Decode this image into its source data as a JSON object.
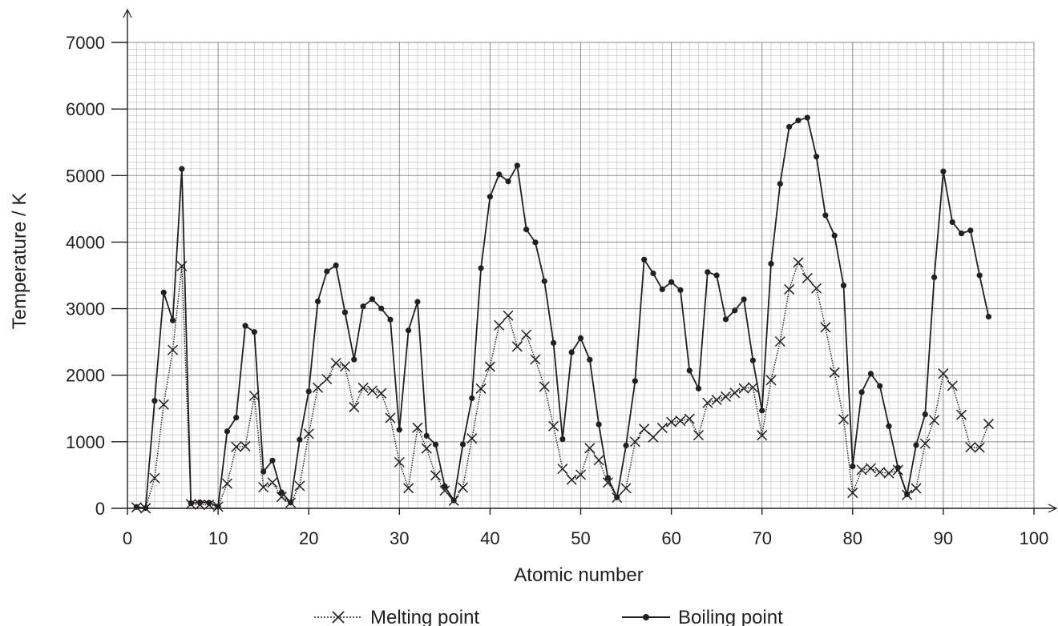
{
  "chart_data": {
    "type": "line",
    "title": "",
    "xlabel": "Atomic number",
    "ylabel": "Temperature / K",
    "xlim": [
      0,
      100
    ],
    "ylim": [
      0,
      7000
    ],
    "x_ticks": [
      "0",
      "10",
      "20",
      "30",
      "40",
      "50",
      "60",
      "70",
      "80",
      "90",
      "100"
    ],
    "y_ticks": [
      "0",
      "1000",
      "2000",
      "3000",
      "4000",
      "5000",
      "6000",
      "7000"
    ],
    "grid": true,
    "legend_position": "bottom",
    "series": [
      {
        "name": "Melting point",
        "marker": "x",
        "line_style": "dotted",
        "color": "#231f20",
        "points": [
          [
            1,
            14
          ],
          [
            2,
            1
          ],
          [
            3,
            454
          ],
          [
            4,
            1560
          ],
          [
            5,
            2380
          ],
          [
            6,
            3640
          ],
          [
            7,
            63
          ],
          [
            8,
            54
          ],
          [
            9,
            53
          ],
          [
            10,
            24
          ],
          [
            11,
            371
          ],
          [
            12,
            923
          ],
          [
            13,
            933
          ],
          [
            14,
            1690
          ],
          [
            15,
            317
          ],
          [
            16,
            388
          ],
          [
            17,
            172
          ],
          [
            18,
            84
          ],
          [
            19,
            337
          ],
          [
            20,
            1120
          ],
          [
            21,
            1814
          ],
          [
            22,
            1941
          ],
          [
            23,
            2183
          ],
          [
            24,
            2130
          ],
          [
            25,
            1519
          ],
          [
            26,
            1811
          ],
          [
            27,
            1768
          ],
          [
            28,
            1728
          ],
          [
            29,
            1358
          ],
          [
            30,
            693
          ],
          [
            31,
            303
          ],
          [
            32,
            1211
          ],
          [
            33,
            900
          ],
          [
            34,
            494
          ],
          [
            35,
            266
          ],
          [
            36,
            116
          ],
          [
            37,
            312
          ],
          [
            38,
            1050
          ],
          [
            39,
            1799
          ],
          [
            40,
            2128
          ],
          [
            41,
            2750
          ],
          [
            42,
            2896
          ],
          [
            43,
            2430
          ],
          [
            44,
            2607
          ],
          [
            45,
            2237
          ],
          [
            46,
            1828
          ],
          [
            47,
            1235
          ],
          [
            48,
            594
          ],
          [
            49,
            430
          ],
          [
            50,
            505
          ],
          [
            51,
            904
          ],
          [
            52,
            723
          ],
          [
            53,
            387
          ],
          [
            54,
            161
          ],
          [
            55,
            302
          ],
          [
            56,
            1000
          ],
          [
            57,
            1193
          ],
          [
            58,
            1068
          ],
          [
            59,
            1208
          ],
          [
            60,
            1297
          ],
          [
            61,
            1315
          ],
          [
            62,
            1345
          ],
          [
            63,
            1099
          ],
          [
            64,
            1585
          ],
          [
            65,
            1629
          ],
          [
            66,
            1680
          ],
          [
            67,
            1734
          ],
          [
            68,
            1802
          ],
          [
            69,
            1818
          ],
          [
            70,
            1097
          ],
          [
            71,
            1925
          ],
          [
            72,
            2506
          ],
          [
            73,
            3290
          ],
          [
            74,
            3695
          ],
          [
            75,
            3459
          ],
          [
            76,
            3306
          ],
          [
            77,
            2719
          ],
          [
            78,
            2041
          ],
          [
            79,
            1337
          ],
          [
            80,
            234
          ],
          [
            81,
            577
          ],
          [
            82,
            601
          ],
          [
            83,
            544
          ],
          [
            84,
            527
          ],
          [
            85,
            575
          ],
          [
            86,
            202
          ],
          [
            87,
            300
          ],
          [
            88,
            973
          ],
          [
            89,
            1323
          ],
          [
            90,
            2023
          ],
          [
            91,
            1841
          ],
          [
            92,
            1405
          ],
          [
            93,
            917
          ],
          [
            94,
            913
          ],
          [
            95,
            1268
          ]
        ]
      },
      {
        "name": "Boiling point",
        "marker": "dot",
        "line_style": "solid",
        "color": "#231f20",
        "points": [
          [
            1,
            20
          ],
          [
            2,
            4
          ],
          [
            3,
            1615
          ],
          [
            4,
            3243
          ],
          [
            5,
            2823
          ],
          [
            6,
            5100
          ],
          [
            7,
            77
          ],
          [
            8,
            90
          ],
          [
            9,
            85
          ],
          [
            10,
            27
          ],
          [
            11,
            1156
          ],
          [
            12,
            1363
          ],
          [
            13,
            2743
          ],
          [
            14,
            2650
          ],
          [
            15,
            550
          ],
          [
            16,
            718
          ],
          [
            17,
            239
          ],
          [
            18,
            87
          ],
          [
            19,
            1032
          ],
          [
            20,
            1757
          ],
          [
            21,
            3109
          ],
          [
            22,
            3560
          ],
          [
            23,
            3650
          ],
          [
            24,
            2944
          ],
          [
            25,
            2235
          ],
          [
            26,
            3034
          ],
          [
            27,
            3143
          ],
          [
            28,
            3003
          ],
          [
            29,
            2835
          ],
          [
            30,
            1180
          ],
          [
            31,
            2673
          ],
          [
            32,
            3103
          ],
          [
            33,
            1090
          ],
          [
            34,
            958
          ],
          [
            35,
            332
          ],
          [
            36,
            120
          ],
          [
            37,
            961
          ],
          [
            38,
            1655
          ],
          [
            39,
            3609
          ],
          [
            40,
            4682
          ],
          [
            41,
            5017
          ],
          [
            42,
            4912
          ],
          [
            43,
            5150
          ],
          [
            44,
            4190
          ],
          [
            45,
            3995
          ],
          [
            46,
            3413
          ],
          [
            47,
            2485
          ],
          [
            48,
            1040
          ],
          [
            49,
            2345
          ],
          [
            50,
            2556
          ],
          [
            51,
            2233
          ],
          [
            52,
            1261
          ],
          [
            53,
            457
          ],
          [
            54,
            165
          ],
          [
            55,
            944
          ],
          [
            56,
            1913
          ],
          [
            57,
            3737
          ],
          [
            58,
            3530
          ],
          [
            59,
            3290
          ],
          [
            60,
            3400
          ],
          [
            61,
            3280
          ],
          [
            62,
            2070
          ],
          [
            63,
            1800
          ],
          [
            64,
            3550
          ],
          [
            65,
            3500
          ],
          [
            66,
            2840
          ],
          [
            67,
            2973
          ],
          [
            68,
            3140
          ],
          [
            69,
            2223
          ],
          [
            70,
            1469
          ],
          [
            71,
            3675
          ],
          [
            72,
            4876
          ],
          [
            73,
            5731
          ],
          [
            74,
            5828
          ],
          [
            75,
            5870
          ],
          [
            76,
            5285
          ],
          [
            77,
            4403
          ],
          [
            78,
            4098
          ],
          [
            79,
            3348
          ],
          [
            80,
            630
          ],
          [
            81,
            1746
          ],
          [
            82,
            2022
          ],
          [
            83,
            1837
          ],
          [
            84,
            1235
          ],
          [
            85,
            610
          ],
          [
            86,
            211
          ],
          [
            87,
            950
          ],
          [
            88,
            1413
          ],
          [
            89,
            3471
          ],
          [
            90,
            5061
          ],
          [
            91,
            4300
          ],
          [
            92,
            4131
          ],
          [
            93,
            4175
          ],
          [
            94,
            3501
          ],
          [
            95,
            2880
          ]
        ]
      }
    ]
  }
}
